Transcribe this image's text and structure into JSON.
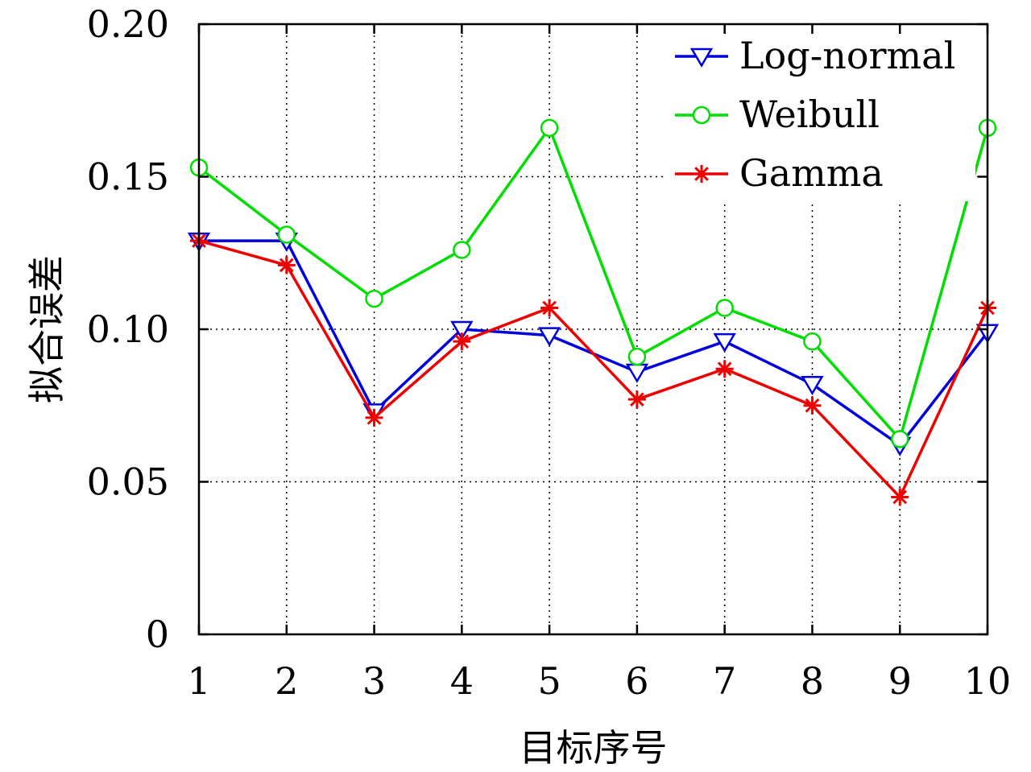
{
  "chart_data": {
    "type": "line",
    "xlabel": "目标序号",
    "ylabel": "拟合误差",
    "x": [
      1,
      2,
      3,
      4,
      5,
      6,
      7,
      8,
      9,
      10
    ],
    "x_tick_labels": [
      "1",
      "2",
      "3",
      "4",
      "5",
      "6",
      "7",
      "8",
      "9",
      "10"
    ],
    "xlim": [
      1,
      10
    ],
    "ylim": [
      0,
      0.2
    ],
    "y_ticks": [
      0,
      0.05,
      0.1,
      0.15,
      0.2
    ],
    "y_tick_labels": [
      "0",
      "0.05",
      "0.10",
      "0.15",
      "0.20"
    ],
    "grid": true,
    "legend_position": "top-right",
    "series": [
      {
        "name": "Log-normal",
        "color": "#0000dd",
        "marker": "triangle-down",
        "values": [
          0.129,
          0.129,
          0.073,
          0.1,
          0.098,
          0.086,
          0.096,
          0.082,
          0.062,
          0.099
        ]
      },
      {
        "name": "Weibull",
        "color": "#00dd00",
        "marker": "circle",
        "values": [
          0.153,
          0.131,
          0.11,
          0.126,
          0.166,
          0.091,
          0.107,
          0.096,
          0.064,
          0.166
        ]
      },
      {
        "name": "Gamma",
        "color": "#ee0000",
        "marker": "asterisk",
        "values": [
          0.129,
          0.121,
          0.071,
          0.096,
          0.107,
          0.077,
          0.087,
          0.075,
          0.045,
          0.107
        ]
      }
    ]
  }
}
